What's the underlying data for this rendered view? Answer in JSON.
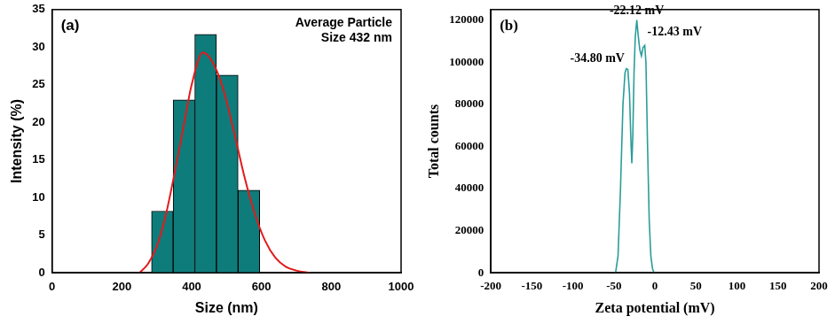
{
  "chart_data": [
    {
      "type": "histogram",
      "panel_label": "(a)",
      "text_box": [
        "Average Particle",
        "Size 432 nm"
      ],
      "x_label": "Size (nm)",
      "y_label": "Intensity (%)",
      "bins": [
        285,
        347,
        409,
        471,
        533,
        595
      ],
      "values": [
        8.2,
        23,
        31.7,
        26.3,
        11
      ],
      "color": "#0e7c7b",
      "series": [
        {
          "type": "line",
          "color": "#e31a1c",
          "line_style": "solid",
          "x": [
            250,
            275,
            300,
            325,
            350,
            375,
            400,
            432,
            460,
            490,
            520,
            550,
            580,
            610,
            640,
            670,
            700,
            740
          ],
          "values": [
            0,
            1.2,
            3.5,
            7.5,
            13,
            19,
            25,
            29.3,
            28,
            24.5,
            19,
            13,
            8,
            4.3,
            2,
            0.8,
            0.3,
            0
          ]
        }
      ],
      "xlim": [
        0,
        1000
      ],
      "xticks": [
        0,
        200,
        400,
        600,
        800,
        1000
      ],
      "ylim": [
        0,
        35
      ],
      "yticks": [
        0,
        5,
        10,
        15,
        20,
        25,
        30,
        35
      ],
      "grid": false
    },
    {
      "type": "line",
      "panel_label": "(b)",
      "x_label": "Zeta potential (mV)",
      "y_label": "Total counts",
      "x": [
        -55,
        -48,
        -45,
        -42,
        -39,
        -36.5,
        -34.8,
        -33,
        -31,
        -29.5,
        -28.2,
        -27,
        -25.5,
        -24,
        -22.12,
        -20.5,
        -18.5,
        -16.5,
        -14.5,
        -12.43,
        -11,
        -9,
        -7,
        -5,
        -3,
        -1,
        0
      ],
      "values": [
        0,
        0,
        8000,
        40000,
        80000,
        95000,
        97000,
        96500,
        85000,
        65000,
        52000,
        65000,
        95000,
        112000,
        120000,
        113000,
        106000,
        103000,
        107000,
        108000,
        100000,
        60000,
        25000,
        8000,
        2000,
        0,
        0
      ],
      "color": "#2a9d9a",
      "annotations": [
        {
          "text": "-34.80 mV",
          "x": -34.8,
          "y": 97000
        },
        {
          "text": "-22.12 mV",
          "x": -22.12,
          "y": 120000
        },
        {
          "text": "-12.43 mV",
          "x": -12.43,
          "y": 108000
        }
      ],
      "xlim": [
        -200,
        200
      ],
      "xticks": [
        -200,
        -150,
        -100,
        -50,
        0,
        50,
        100,
        150,
        200
      ],
      "ylim": [
        0,
        125000
      ],
      "yticks": [
        0,
        20000,
        40000,
        60000,
        80000,
        100000,
        120000
      ],
      "grid": false
    }
  ]
}
